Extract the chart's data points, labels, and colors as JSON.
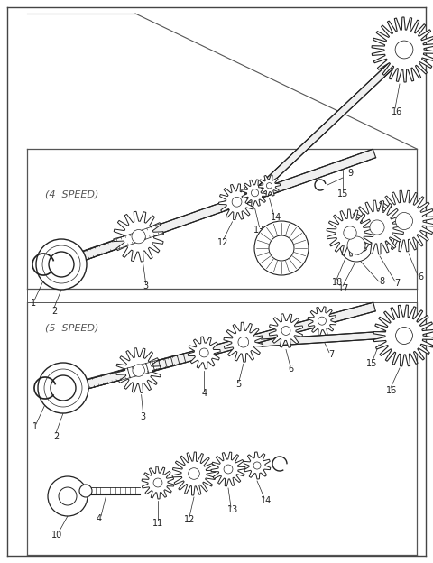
{
  "bg_color": "#ffffff",
  "line_color": "#222222",
  "label_color": "#333333",
  "fig_width": 4.8,
  "fig_height": 6.24,
  "dpi": 100,
  "label_fontsize": 7.0,
  "speed_label_fontsize": 8.0,
  "panel_line_color": "#555555"
}
